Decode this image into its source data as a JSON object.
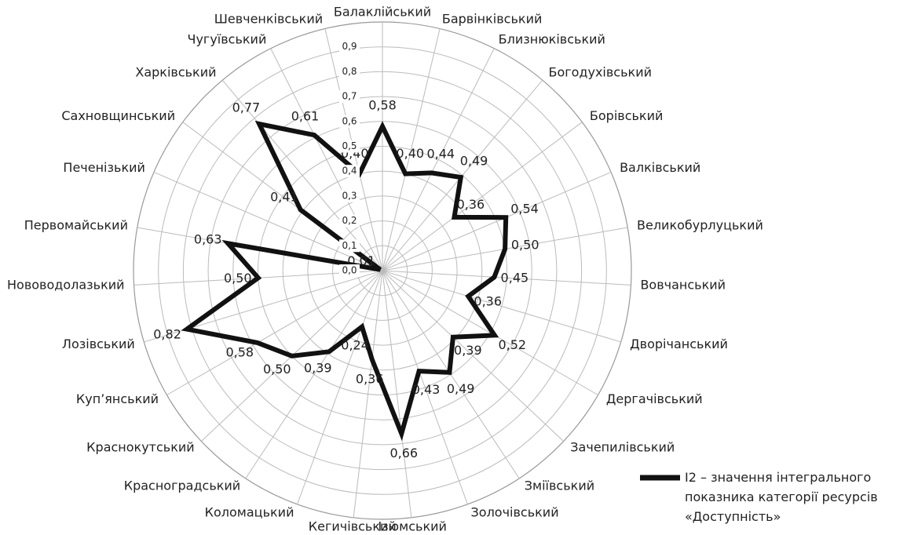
{
  "chart_data": {
    "type": "radar",
    "categories": [
      "Балаклійський",
      "Барвінківський",
      "Близнюківський",
      "Богодухівський",
      "Борівський",
      "Валківський",
      "Великобурлуцький",
      "Вовчанський",
      "Дворічанський",
      "Дергачівський",
      "Зачепилівський",
      "Зміївський",
      "Золочівський",
      "Ізюмський",
      "Кегичівський",
      "Коломацький",
      "Красноградський",
      "Краснокутський",
      "Куп’янський",
      "Лозівський",
      "Нововодолазький",
      "Первомайський",
      "Печенізький",
      "Сахновщинський",
      "Харківський",
      "Чугуївський",
      "Шевченківський"
    ],
    "series": [
      {
        "name": "I2 – значення інтегрального показника категорії ресурсів «Доступність»",
        "color": "#111111",
        "values": [
          0.58,
          0.4,
          0.44,
          0.49,
          0.36,
          0.54,
          0.5,
          0.45,
          0.36,
          0.52,
          0.39,
          0.49,
          0.43,
          0.66,
          0.36,
          0.24,
          0.39,
          0.5,
          0.58,
          0.82,
          0.5,
          0.63,
          0.01,
          0.41,
          0.77,
          0.61,
          0.4
        ],
        "value_labels": [
          "0,58",
          "0,40",
          "0,44",
          "0,49",
          "0,36",
          "0,54",
          "0,50",
          "0,45",
          "0,36",
          "0,52",
          "0,39",
          "0,49",
          "0,43",
          "0,66",
          "0,36",
          "0,24",
          "0,39",
          "0,50",
          "0,58",
          "0,82",
          "0,50",
          "0,63",
          "0,01",
          "0,41",
          "0,77",
          "0,61",
          "0,40"
        ]
      }
    ],
    "ylim": [
      0,
      1
    ],
    "yticks": [
      {
        "value": 0,
        "label": "0,0"
      },
      {
        "value": 0.1,
        "label": "0,1"
      },
      {
        "value": 0.2,
        "label": "0,2"
      },
      {
        "value": 0.3,
        "label": "0,3"
      },
      {
        "value": 0.4,
        "label": "0,4"
      },
      {
        "value": 0.5,
        "label": "0,5"
      },
      {
        "value": 0.6,
        "label": "0,6"
      },
      {
        "value": 0.7,
        "label": "0,7"
      },
      {
        "value": 0.8,
        "label": "0,8"
      },
      {
        "value": 0.9,
        "label": "0,9"
      }
    ],
    "grid": true,
    "legend": "lower right"
  }
}
